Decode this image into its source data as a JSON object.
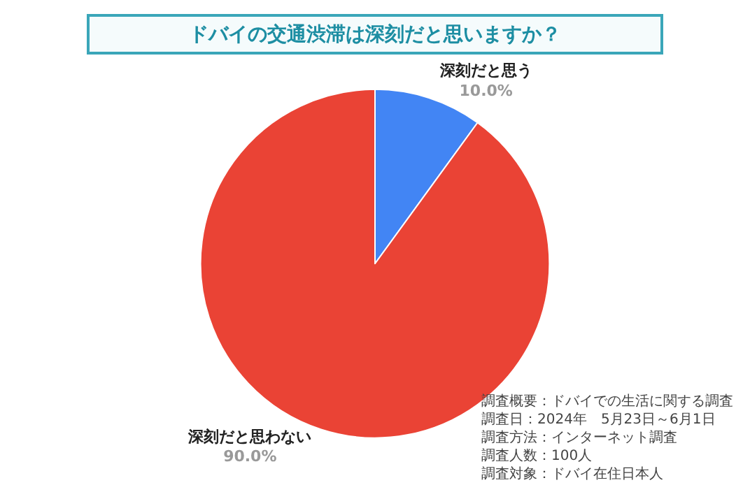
{
  "chart_data": {
    "type": "pie",
    "title": "ドバイの交通渋滞は深刻だと思いますか？",
    "categories": [
      "深刻だと思う",
      "深刻だと思わない"
    ],
    "values": [
      10.0,
      90.0
    ],
    "colors": [
      "#4285f4",
      "#ea4335"
    ],
    "value_labels": [
      "10.0%",
      "90.0%"
    ],
    "legend": false,
    "annotations": [
      "調査概要：ドバイでの生活に関する調査",
      "調査日：2024年　5月23日～6月1日",
      "調査方法：インターネット調査",
      "調査人数：100人",
      "調査対象：ドバイ在住日本人"
    ]
  }
}
